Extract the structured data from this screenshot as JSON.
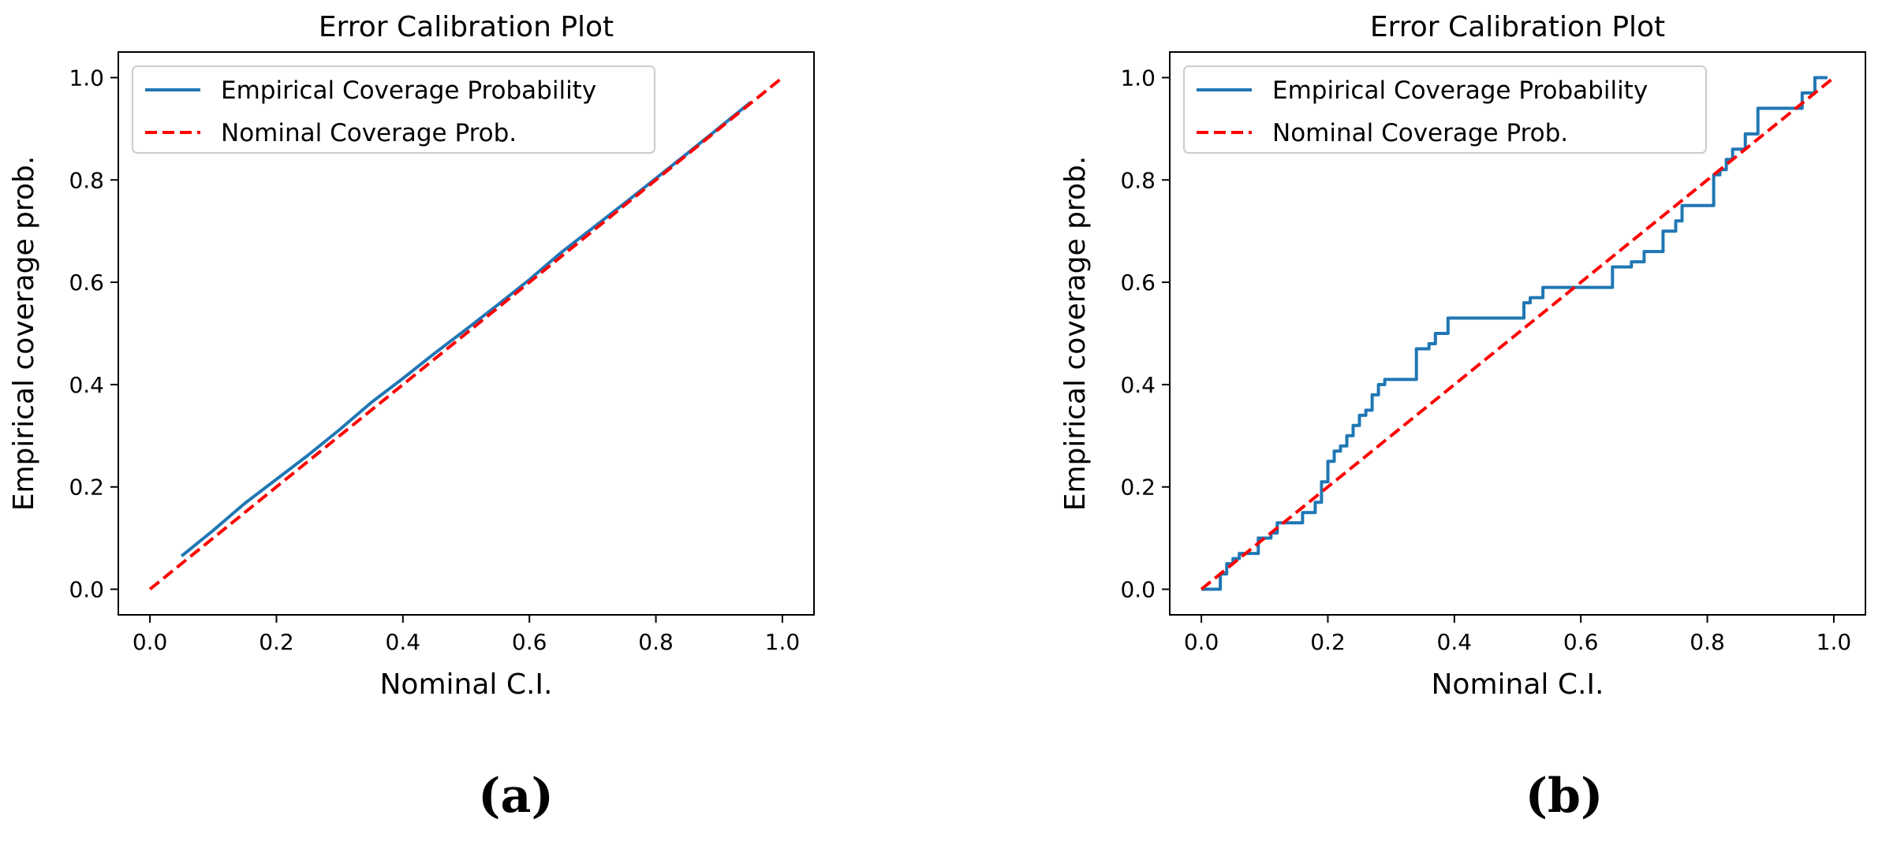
{
  "figure": {
    "panels": [
      {
        "caption": "(a)"
      },
      {
        "caption": "(b)"
      }
    ]
  },
  "chart_data": [
    {
      "type": "line",
      "title": "Error Calibration Plot",
      "xlabel": "Nominal C.I.",
      "ylabel": "Empirical coverage prob.",
      "xlim": [
        -0.05,
        1.05
      ],
      "ylim": [
        -0.05,
        1.05
      ],
      "xticks": [
        0.0,
        0.2,
        0.4,
        0.6,
        0.8,
        1.0
      ],
      "yticks": [
        0.0,
        0.2,
        0.4,
        0.6,
        0.8,
        1.0
      ],
      "xtick_labels": [
        "0.0",
        "0.2",
        "0.4",
        "0.6",
        "0.8",
        "1.0"
      ],
      "ytick_labels": [
        "0.0",
        "0.2",
        "0.4",
        "0.6",
        "0.8",
        "1.0"
      ],
      "grid": false,
      "legend_position": "top-left",
      "series": [
        {
          "name": "Empirical Coverage Probability",
          "color": "#1f77b4",
          "style": "solid",
          "x": [
            0.05,
            0.1,
            0.15,
            0.2,
            0.25,
            0.3,
            0.35,
            0.4,
            0.45,
            0.5,
            0.55,
            0.6,
            0.65,
            0.7,
            0.75,
            0.8,
            0.85,
            0.9,
            0.95
          ],
          "y": [
            0.065,
            0.115,
            0.168,
            0.215,
            0.262,
            0.312,
            0.365,
            0.412,
            0.461,
            0.508,
            0.556,
            0.605,
            0.658,
            0.706,
            0.754,
            0.803,
            0.852,
            0.902,
            0.952
          ]
        },
        {
          "name": "Nominal Coverage Prob.",
          "color": "#ff0000",
          "style": "dashed",
          "x": [
            0.0,
            1.0
          ],
          "y": [
            0.0,
            1.0
          ]
        }
      ]
    },
    {
      "type": "line",
      "title": "Error Calibration Plot",
      "xlabel": "Nominal C.I.",
      "ylabel": "Empirical coverage prob.",
      "xlim": [
        -0.05,
        1.05
      ],
      "ylim": [
        -0.05,
        1.05
      ],
      "xticks": [
        0.0,
        0.2,
        0.4,
        0.6,
        0.8,
        1.0
      ],
      "yticks": [
        0.0,
        0.2,
        0.4,
        0.6,
        0.8,
        1.0
      ],
      "xtick_labels": [
        "0.0",
        "0.2",
        "0.4",
        "0.6",
        "0.8",
        "1.0"
      ],
      "ytick_labels": [
        "0.0",
        "0.2",
        "0.4",
        "0.6",
        "0.8",
        "1.0"
      ],
      "grid": false,
      "legend_position": "top-left",
      "series": [
        {
          "name": "Empirical Coverage Probability",
          "color": "#1f77b4",
          "style": "solid",
          "x": [
            0.0,
            0.03,
            0.03,
            0.04,
            0.04,
            0.05,
            0.05,
            0.06,
            0.06,
            0.09,
            0.09,
            0.11,
            0.11,
            0.12,
            0.12,
            0.16,
            0.16,
            0.18,
            0.18,
            0.19,
            0.19,
            0.2,
            0.2,
            0.21,
            0.21,
            0.22,
            0.22,
            0.23,
            0.23,
            0.24,
            0.24,
            0.25,
            0.25,
            0.26,
            0.26,
            0.27,
            0.27,
            0.28,
            0.28,
            0.29,
            0.29,
            0.34,
            0.34,
            0.36,
            0.36,
            0.37,
            0.37,
            0.39,
            0.39,
            0.51,
            0.51,
            0.52,
            0.52,
            0.54,
            0.54,
            0.65,
            0.65,
            0.68,
            0.68,
            0.7,
            0.7,
            0.73,
            0.73,
            0.75,
            0.75,
            0.76,
            0.76,
            0.81,
            0.81,
            0.82,
            0.82,
            0.83,
            0.83,
            0.84,
            0.84,
            0.86,
            0.86,
            0.88,
            0.88,
            0.95,
            0.95,
            0.97,
            0.97,
            0.99
          ],
          "y": [
            0.0,
            0.0,
            0.03,
            0.03,
            0.05,
            0.05,
            0.06,
            0.06,
            0.07,
            0.07,
            0.1,
            0.1,
            0.11,
            0.11,
            0.13,
            0.13,
            0.15,
            0.15,
            0.17,
            0.17,
            0.21,
            0.21,
            0.25,
            0.25,
            0.27,
            0.27,
            0.28,
            0.28,
            0.3,
            0.3,
            0.32,
            0.32,
            0.34,
            0.34,
            0.35,
            0.35,
            0.38,
            0.38,
            0.4,
            0.4,
            0.41,
            0.41,
            0.47,
            0.47,
            0.48,
            0.48,
            0.5,
            0.5,
            0.53,
            0.53,
            0.56,
            0.56,
            0.57,
            0.57,
            0.59,
            0.59,
            0.63,
            0.63,
            0.64,
            0.64,
            0.66,
            0.66,
            0.7,
            0.7,
            0.72,
            0.72,
            0.75,
            0.75,
            0.81,
            0.81,
            0.82,
            0.82,
            0.84,
            0.84,
            0.86,
            0.86,
            0.89,
            0.89,
            0.94,
            0.94,
            0.97,
            0.97,
            1.0,
            1.0
          ]
        },
        {
          "name": "Nominal Coverage Prob.",
          "color": "#ff0000",
          "style": "dashed",
          "x": [
            0.0,
            1.0
          ],
          "y": [
            0.0,
            1.0
          ]
        }
      ]
    }
  ]
}
